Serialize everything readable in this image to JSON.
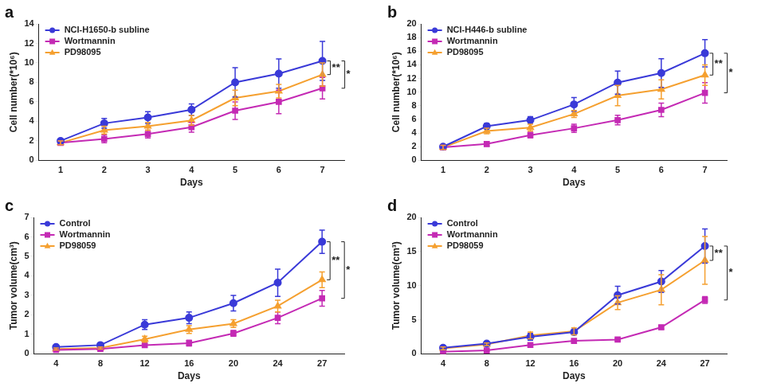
{
  "chart_data": [
    {
      "type": "line",
      "title": "a",
      "x_label": "Days",
      "y_label": "Cell number(*10⁶)",
      "categories": [
        "1",
        "2",
        "3",
        "4",
        "5",
        "6",
        "7"
      ],
      "ylim": [
        0,
        14
      ],
      "yticks": [
        0,
        2,
        4,
        6,
        8,
        10,
        12,
        14
      ],
      "grid": false,
      "legend": "upper left",
      "series": [
        {
          "name": "NCI-H1650-b subline",
          "color": "#3a3ad8",
          "marker": "circle",
          "values": [
            2.0,
            3.8,
            4.4,
            5.2,
            8.0,
            8.9,
            10.2
          ],
          "errors": [
            0.2,
            0.5,
            0.6,
            0.6,
            1.5,
            1.5,
            2.0
          ]
        },
        {
          "name": "Wortmannin",
          "color": "#c42ab4",
          "marker": "square",
          "values": [
            1.8,
            2.2,
            2.7,
            3.4,
            5.1,
            6.0,
            7.4
          ],
          "errors": [
            0.2,
            0.4,
            0.4,
            0.5,
            0.9,
            1.2,
            1.1
          ]
        },
        {
          "name": "PD98095",
          "color": "#f5a030",
          "marker": "triangle",
          "values": [
            1.8,
            3.1,
            3.5,
            4.1,
            6.4,
            7.1,
            8.8
          ],
          "errors": [
            0.2,
            0.4,
            0.4,
            0.5,
            0.8,
            0.7,
            1.2
          ]
        }
      ],
      "annotations": [
        {
          "text": "**",
          "series": [
            "NCI-H1650-b subline",
            "PD98095"
          ]
        },
        {
          "text": "*",
          "series": [
            "NCI-H1650-b subline",
            "Wortmannin"
          ]
        }
      ]
    },
    {
      "type": "line",
      "title": "b",
      "x_label": "Days",
      "y_label": "Cell number(*10⁶)",
      "categories": [
        "1",
        "2",
        "3",
        "4",
        "5",
        "6",
        "7"
      ],
      "ylim": [
        0,
        20
      ],
      "yticks": [
        0,
        2,
        4,
        6,
        8,
        10,
        12,
        14,
        16,
        18,
        20
      ],
      "grid": false,
      "legend": "upper left",
      "series": [
        {
          "name": "NCI-H446-b subline",
          "color": "#3a3ad8",
          "marker": "circle",
          "values": [
            2.0,
            5.0,
            5.9,
            8.2,
            11.4,
            12.8,
            15.7
          ],
          "errors": [
            0.3,
            0.4,
            0.5,
            1.0,
            1.7,
            2.1,
            2.0
          ]
        },
        {
          "name": "Wortmannin",
          "color": "#c42ab4",
          "marker": "square",
          "values": [
            1.9,
            2.4,
            3.7,
            4.7,
            5.9,
            7.4,
            9.9
          ],
          "errors": [
            0.3,
            0.3,
            0.4,
            0.6,
            0.7,
            1.0,
            1.5
          ]
        },
        {
          "name": "PD98095",
          "color": "#f5a030",
          "marker": "triangle",
          "values": [
            1.9,
            4.3,
            4.8,
            6.8,
            9.5,
            10.4,
            12.5
          ],
          "errors": [
            0.3,
            0.4,
            0.5,
            0.5,
            1.5,
            1.4,
            1.5
          ]
        }
      ],
      "annotations": [
        {
          "text": "**",
          "series": [
            "NCI-H446-b subline",
            "PD98095"
          ]
        },
        {
          "text": "*",
          "series": [
            "NCI-H446-b subline",
            "Wortmannin"
          ]
        }
      ]
    },
    {
      "type": "line",
      "title": "c",
      "x_label": "Days",
      "y_label": "Tumor volume(cm³)",
      "categories": [
        "4",
        "8",
        "12",
        "16",
        "20",
        "24",
        "27"
      ],
      "ylim": [
        0,
        7
      ],
      "yticks": [
        0,
        1,
        2,
        3,
        4,
        5,
        6,
        7
      ],
      "grid": false,
      "legend": "upper left",
      "series": [
        {
          "name": "Control",
          "color": "#3a3ad8",
          "marker": "circle",
          "values": [
            0.35,
            0.45,
            1.5,
            1.85,
            2.6,
            3.65,
            5.75
          ],
          "errors": [
            0.05,
            0.05,
            0.25,
            0.3,
            0.4,
            0.7,
            0.6
          ]
        },
        {
          "name": "Wortmannin",
          "color": "#c42ab4",
          "marker": "square",
          "values": [
            0.2,
            0.25,
            0.45,
            0.55,
            1.05,
            1.85,
            2.85
          ],
          "errors": [
            0.03,
            0.05,
            0.1,
            0.15,
            0.15,
            0.3,
            0.4
          ]
        },
        {
          "name": "PD98059",
          "color": "#f5a030",
          "marker": "triangle",
          "values": [
            0.25,
            0.3,
            0.75,
            1.25,
            1.55,
            2.45,
            3.8
          ],
          "errors": [
            0.05,
            0.05,
            0.15,
            0.2,
            0.2,
            0.3,
            0.4
          ]
        }
      ],
      "annotations": [
        {
          "text": "**",
          "series": [
            "Control",
            "PD98059"
          ]
        },
        {
          "text": "*",
          "series": [
            "Control",
            "Wortmannin"
          ]
        }
      ]
    },
    {
      "type": "line",
      "title": "d",
      "x_label": "Days",
      "y_label": "Tumor volume(cm³)",
      "categories": [
        "4",
        "8",
        "12",
        "16",
        "20",
        "24",
        "27"
      ],
      "ylim": [
        0,
        20
      ],
      "yticks": [
        0,
        5,
        10,
        15,
        20
      ],
      "grid": false,
      "legend": "upper left",
      "series": [
        {
          "name": "Control",
          "color": "#3a3ad8",
          "marker": "circle",
          "values": [
            0.9,
            1.5,
            2.5,
            3.2,
            8.6,
            10.6,
            15.8
          ],
          "errors": [
            0.2,
            0.2,
            0.5,
            0.4,
            1.3,
            1.6,
            2.5
          ]
        },
        {
          "name": "Wortmannin",
          "color": "#c42ab4",
          "marker": "square",
          "values": [
            0.3,
            0.5,
            1.3,
            1.9,
            2.1,
            3.9,
            7.9
          ],
          "errors": [
            0.1,
            0.1,
            0.2,
            0.2,
            0.2,
            0.3,
            0.5
          ]
        },
        {
          "name": "PD98059",
          "color": "#f5a030",
          "marker": "triangle",
          "values": [
            0.8,
            1.4,
            2.7,
            3.3,
            7.5,
            9.4,
            13.7
          ],
          "errors": [
            0.2,
            0.2,
            0.5,
            0.5,
            1.0,
            2.2,
            3.5
          ]
        }
      ],
      "annotations": [
        {
          "text": "**",
          "series": [
            "Control",
            "PD98059"
          ]
        },
        {
          "text": "*",
          "series": [
            "Control",
            "Wortmannin"
          ]
        }
      ]
    }
  ]
}
